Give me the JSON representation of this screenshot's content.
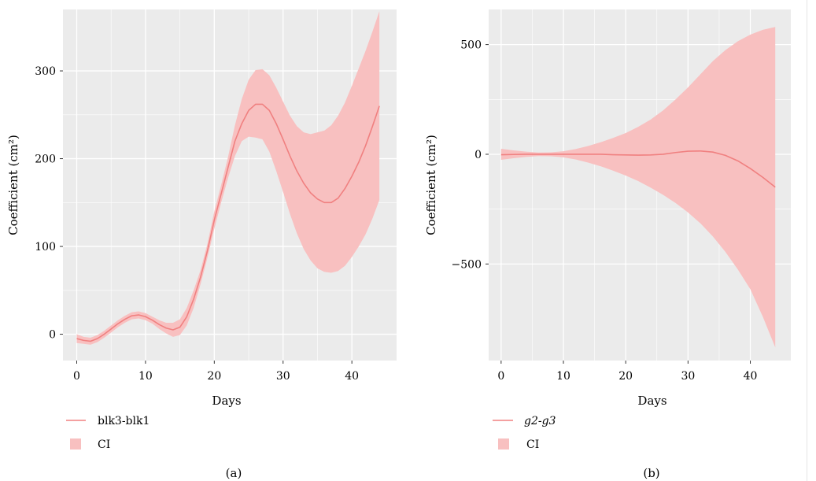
{
  "figure": {
    "panels": [
      {
        "label": "(a)",
        "legend_line": "blk3-blk1",
        "legend_patch": "CI"
      },
      {
        "label": "(b)",
        "legend_line": "g2-g3",
        "legend_patch": "CI"
      }
    ]
  },
  "colors": {
    "panel_bg": "#ebebeb",
    "grid": "#ffffff",
    "line": "#f08080",
    "band": "#f8c0c0"
  },
  "chart_data": [
    {
      "type": "line",
      "title": "",
      "xlabel": "Days",
      "ylabel": "Coefficient (cm²)",
      "xlim": [
        -2,
        46.5
      ],
      "ylim": [
        -30,
        370
      ],
      "xticks": [
        0,
        10,
        20,
        30,
        40
      ],
      "yticks": [
        0,
        100,
        200,
        300
      ],
      "series": [
        {
          "name": "blk3-blk1",
          "x": [
            0,
            1,
            2,
            3,
            4,
            5,
            6,
            7,
            8,
            9,
            10,
            11,
            12,
            13,
            14,
            15,
            16,
            17,
            18,
            19,
            20,
            21,
            22,
            23,
            24,
            25,
            26,
            27,
            28,
            29,
            30,
            31,
            32,
            33,
            34,
            35,
            36,
            37,
            38,
            39,
            40,
            41,
            42,
            43,
            44
          ],
          "y": [
            -5,
            -7,
            -8,
            -5,
            0,
            6,
            12,
            17,
            21,
            22,
            20,
            16,
            11,
            7,
            5,
            8,
            20,
            40,
            65,
            95,
            130,
            160,
            190,
            220,
            240,
            255,
            262,
            262,
            255,
            240,
            222,
            203,
            186,
            172,
            161,
            154,
            150,
            150,
            155,
            166,
            180,
            196,
            215,
            237,
            260
          ]
        }
      ],
      "ci": {
        "name": "CI",
        "lower": [
          -10,
          -11,
          -12,
          -9,
          -4,
          2,
          8,
          13,
          17,
          18,
          16,
          12,
          6,
          1,
          -3,
          -1,
          10,
          30,
          57,
          87,
          120,
          150,
          178,
          203,
          220,
          225,
          224,
          222,
          208,
          186,
          162,
          137,
          115,
          97,
          84,
          75,
          71,
          70,
          72,
          78,
          88,
          100,
          114,
          132,
          153
        ],
        "upper": [
          0,
          -3,
          -4,
          -1,
          4,
          10,
          16,
          21,
          25,
          26,
          24,
          20,
          16,
          13,
          13,
          17,
          30,
          50,
          73,
          103,
          140,
          170,
          202,
          238,
          268,
          290,
          301,
          302,
          295,
          281,
          265,
          249,
          237,
          230,
          228,
          230,
          232,
          238,
          249,
          264,
          283,
          303,
          323,
          345,
          368
        ]
      },
      "legend": [
        "blk3-blk1",
        "CI"
      ],
      "panel_label": "(a)"
    },
    {
      "type": "line",
      "title": "",
      "xlabel": "Days",
      "ylabel": "Coefficient (cm²)",
      "xlim": [
        -2,
        46.5
      ],
      "ylim": [
        -940,
        660
      ],
      "xticks": [
        0,
        10,
        20,
        30,
        40
      ],
      "yticks": [
        -500,
        0,
        500
      ],
      "series": [
        {
          "name": "g2-g3",
          "x": [
            0,
            2,
            4,
            6,
            8,
            10,
            12,
            14,
            16,
            18,
            20,
            22,
            24,
            26,
            28,
            30,
            32,
            34,
            36,
            38,
            40,
            42,
            44
          ],
          "y": [
            -2,
            -1,
            0,
            0,
            0,
            0,
            0,
            0,
            0,
            -2,
            -3,
            -4,
            -3,
            0,
            8,
            14,
            15,
            10,
            -5,
            -30,
            -65,
            -105,
            -150
          ]
        }
      ],
      "ci": {
        "name": "CI",
        "lower": [
          -25,
          -18,
          -12,
          -8,
          -9,
          -14,
          -24,
          -38,
          -55,
          -75,
          -97,
          -122,
          -152,
          -185,
          -222,
          -265,
          -315,
          -375,
          -445,
          -525,
          -615,
          -740,
          -880
        ],
        "upper": [
          25,
          18,
          12,
          8,
          9,
          14,
          24,
          38,
          55,
          75,
          97,
          125,
          158,
          200,
          250,
          305,
          365,
          425,
          475,
          515,
          545,
          567,
          580
        ]
      },
      "legend": [
        "g2-g3",
        "CI"
      ],
      "panel_label": "(b)"
    }
  ]
}
